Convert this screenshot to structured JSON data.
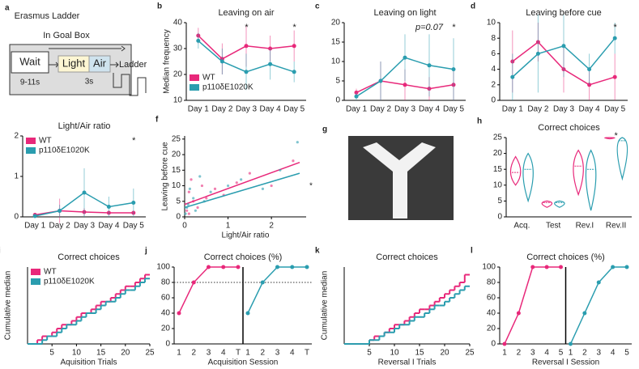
{
  "diagram": {
    "panel": "a",
    "title": "Erasmus Ladder",
    "box": "In Goal Box",
    "wait": "Wait",
    "light": "Light",
    "air": "Air",
    "ladder": "Ladder",
    "wait_time": "9-11s",
    "light_time": "3s"
  },
  "image": {
    "panel": "g"
  },
  "chart_data": [
    {
      "type": "line",
      "panel": "b",
      "title": "Leaving on air",
      "ylabel": "Median frequency",
      "categories": [
        "Day 1",
        "Day 2",
        "Day 3",
        "Day 4",
        "Day 5"
      ],
      "ylim": [
        10,
        40
      ],
      "yticks": [
        10,
        20,
        30,
        40
      ],
      "legend": "lower left",
      "series": [
        {
          "name": "WT",
          "color": "#e8287a",
          "values": [
            35,
            26,
            31,
            30,
            31
          ],
          "errors": [
            3,
            6,
            8,
            5,
            6
          ]
        },
        {
          "name": "p110δE1020K",
          "color": "#2a9daf",
          "values": [
            33,
            25,
            21,
            24,
            21
          ],
          "errors": [
            3,
            5,
            7,
            6,
            4
          ]
        }
      ],
      "annotations": [
        {
          "text": "*",
          "x": "Day 3"
        },
        {
          "text": "*",
          "x": "Day 5"
        }
      ]
    },
    {
      "type": "line",
      "panel": "c",
      "title": "Leaving on light",
      "categories": [
        "Day 1",
        "Day 2",
        "Day 3",
        "Day 4",
        "Day 5"
      ],
      "ylim": [
        0,
        20
      ],
      "yticks": [
        0,
        5,
        10,
        15,
        20
      ],
      "series": [
        {
          "name": "WT",
          "color": "#e8287a",
          "values": [
            2,
            5,
            4,
            3,
            4
          ],
          "errors": [
            1,
            5,
            4,
            3,
            4
          ]
        },
        {
          "name": "p110δE1020K",
          "color": "#2a9daf",
          "values": [
            1,
            5,
            11,
            9,
            8
          ],
          "errors": [
            1,
            5,
            6,
            8,
            8
          ]
        }
      ],
      "annotations": [
        {
          "text": "p=0.07",
          "x": "Day 4"
        },
        {
          "text": "*",
          "x": "Day 5"
        }
      ]
    },
    {
      "type": "line",
      "panel": "d",
      "title": "Leaving before cue",
      "categories": [
        "Day 1",
        "Day 2",
        "Day 3",
        "Day 4",
        "Day 5"
      ],
      "ylim": [
        0,
        10
      ],
      "yticks": [
        0,
        2,
        4,
        6,
        8,
        10
      ],
      "series": [
        {
          "name": "WT",
          "color": "#e8287a",
          "values": [
            5,
            7.5,
            4,
            2,
            3
          ],
          "errors": [
            4,
            2.5,
            3,
            2,
            3
          ]
        },
        {
          "name": "p110δE1020K",
          "color": "#2a9daf",
          "values": [
            3,
            6,
            7,
            4,
            8
          ],
          "errors": [
            3,
            5,
            4,
            2,
            2
          ]
        }
      ],
      "annotations": [
        {
          "text": "*",
          "x": "Day 5"
        }
      ]
    },
    {
      "type": "line",
      "panel": "e",
      "title": "Light/Air ratio",
      "categories": [
        "Day 1",
        "Day 2",
        "Day 3",
        "Day 4",
        "Day 5"
      ],
      "ylim": [
        0,
        2
      ],
      "yticks": [
        0,
        1,
        2
      ],
      "legend": "upper left",
      "series": [
        {
          "name": "WT",
          "color": "#e8287a",
          "values": [
            0.05,
            0.15,
            0.12,
            0.1,
            0.1
          ],
          "errors": [
            0.05,
            0.3,
            0.1,
            0.05,
            0.05
          ]
        },
        {
          "name": "p110δE1020K",
          "color": "#2a9daf",
          "values": [
            0.02,
            0.15,
            0.6,
            0.25,
            0.35
          ],
          "errors": [
            0.02,
            0.15,
            0.6,
            0.25,
            0.35
          ]
        }
      ],
      "annotations": [
        {
          "text": "*",
          "x": "Day 5"
        }
      ]
    },
    {
      "type": "scatter",
      "panel": "f",
      "ylabel": "Leaving before cue",
      "xlabel": "Light/Air ratio",
      "xlim": [
        0,
        2.8
      ],
      "xticks": [
        0,
        1,
        2
      ],
      "ylim": [
        0,
        26
      ],
      "yticks": [
        0,
        5,
        10,
        15,
        20,
        25
      ],
      "series": [
        {
          "name": "WT",
          "color": "#e8287a",
          "x": [
            0.05,
            0.1,
            0.15,
            0.2,
            0.3,
            0.4,
            0.5,
            0.7,
            0.9,
            1.2,
            1.5,
            2.0,
            2.5,
            0.1
          ],
          "values": [
            2,
            8,
            12,
            5,
            3,
            10,
            6,
            9,
            7,
            11,
            14,
            10,
            18,
            1
          ],
          "fit": {
            "x": [
              0,
              2.65
            ],
            "values": [
              4,
              17.5
            ]
          }
        },
        {
          "name": "p110δE1020K",
          "color": "#2a9daf",
          "x": [
            0.02,
            0.08,
            0.12,
            0.2,
            0.25,
            0.35,
            0.45,
            0.6,
            1.0,
            1.3,
            1.8,
            2.2,
            2.6,
            0.05
          ],
          "values": [
            1,
            4,
            9,
            6,
            2,
            13,
            5,
            8,
            10,
            12,
            9,
            15,
            24,
            3
          ],
          "fit": {
            "x": [
              0,
              2.65
            ],
            "values": [
              3,
              14
            ]
          }
        }
      ],
      "annotations": [
        {
          "text": "*"
        }
      ]
    },
    {
      "type": "violin",
      "panel": "h",
      "title": "Correct choices",
      "categories": [
        "Acq.",
        "Test",
        "Rev.I",
        "Rev.II"
      ],
      "ylim": [
        0,
        25
      ],
      "yticks": [
        0,
        5,
        10,
        15,
        20,
        25
      ],
      "series": [
        {
          "name": "WT",
          "color": "#e8287a",
          "values": [
            14,
            4.5,
            16,
            25
          ],
          "min": [
            10,
            3,
            7,
            24.6
          ],
          "max": [
            19,
            5,
            21,
            25
          ]
        },
        {
          "name": "p110δE1020K",
          "color": "#2a9daf",
          "values": [
            15,
            4.5,
            15,
            24
          ],
          "min": [
            5,
            3,
            2,
            12
          ],
          "max": [
            20,
            5,
            21,
            25
          ]
        }
      ],
      "annotations": [
        {
          "text": "*",
          "x": "Rev.II"
        }
      ]
    },
    {
      "type": "step",
      "panel": "i",
      "title": "Correct choices",
      "ylabel": "Cumulative median",
      "xlabel": "Aquisition Trials",
      "xlim": [
        0,
        25
      ],
      "xticks": [
        5,
        10,
        15,
        20,
        25
      ],
      "ylim": [
        0,
        20
      ],
      "legend": "upper left",
      "x": [
        1,
        2,
        3,
        4,
        5,
        6,
        7,
        8,
        9,
        10,
        11,
        12,
        13,
        14,
        15,
        16,
        17,
        18,
        19,
        20,
        21,
        22,
        23,
        24,
        25
      ],
      "series": [
        {
          "name": "WT",
          "color": "#e8287a",
          "values": [
            0,
            0,
            1,
            2,
            2,
            3,
            4,
            5,
            5,
            6,
            7,
            8,
            8,
            9,
            10,
            11,
            11,
            12,
            13,
            14,
            15,
            15,
            16,
            17,
            18
          ]
        },
        {
          "name": "p110δE1020K",
          "color": "#2a9daf",
          "values": [
            0,
            0,
            0,
            1,
            2,
            2,
            3,
            4,
            5,
            5,
            6,
            7,
            8,
            8,
            9,
            10,
            11,
            11,
            12,
            13,
            14,
            14,
            15,
            16,
            17
          ]
        }
      ]
    },
    {
      "type": "session",
      "panel": "j",
      "title": "Correct choices (%)",
      "xlabel": "Acquisition Session",
      "categories": [
        "1",
        "2",
        "3",
        "4",
        "T"
      ],
      "ylim": [
        0,
        100
      ],
      "yticks": [
        0,
        20,
        40,
        60,
        80,
        100
      ],
      "hline": 80,
      "series": [
        {
          "name": "WT",
          "color": "#e8287a",
          "values": [
            40,
            80,
            100,
            100,
            100
          ]
        },
        {
          "name": "p110δE1020K",
          "color": "#2a9daf",
          "values": [
            40,
            80,
            100,
            100,
            100
          ]
        }
      ]
    },
    {
      "type": "step",
      "panel": "k",
      "title": "Correct choices",
      "ylabel": "Cumulative median",
      "xlabel": "Reversal I Trials",
      "xlim": [
        0,
        25
      ],
      "xticks": [
        5,
        10,
        15,
        20,
        25
      ],
      "ylim": [
        0,
        20
      ],
      "x": [
        1,
        2,
        3,
        4,
        5,
        6,
        7,
        8,
        9,
        10,
        11,
        12,
        13,
        14,
        15,
        16,
        17,
        18,
        19,
        20,
        21,
        22,
        23,
        24,
        25
      ],
      "series": [
        {
          "name": "WT",
          "color": "#e8287a",
          "values": [
            0,
            0,
            0,
            0,
            0,
            1,
            2,
            2,
            3,
            4,
            5,
            5,
            6,
            7,
            8,
            9,
            9,
            10,
            11,
            12,
            13,
            14,
            15,
            16,
            18
          ]
        },
        {
          "name": "p110δE1020K",
          "color": "#2a9daf",
          "values": [
            0,
            0,
            0,
            0,
            0,
            1,
            1,
            2,
            3,
            3,
            4,
            5,
            5,
            6,
            7,
            7,
            8,
            9,
            10,
            10,
            11,
            12,
            13,
            14,
            15
          ]
        }
      ]
    },
    {
      "type": "session",
      "panel": "l",
      "title": "Correct choices (%)",
      "xlabel": "Reversal I Session",
      "categories": [
        "1",
        "2",
        "3",
        "4",
        "5"
      ],
      "ylim": [
        0,
        100
      ],
      "yticks": [
        0,
        20,
        40,
        60,
        80,
        100
      ],
      "series": [
        {
          "name": "WT",
          "color": "#e8287a",
          "values": [
            0,
            40,
            100,
            100,
            100
          ]
        },
        {
          "name": "p110δE1020K",
          "color": "#2a9daf",
          "values": [
            0,
            40,
            80,
            100,
            100
          ]
        }
      ]
    }
  ]
}
